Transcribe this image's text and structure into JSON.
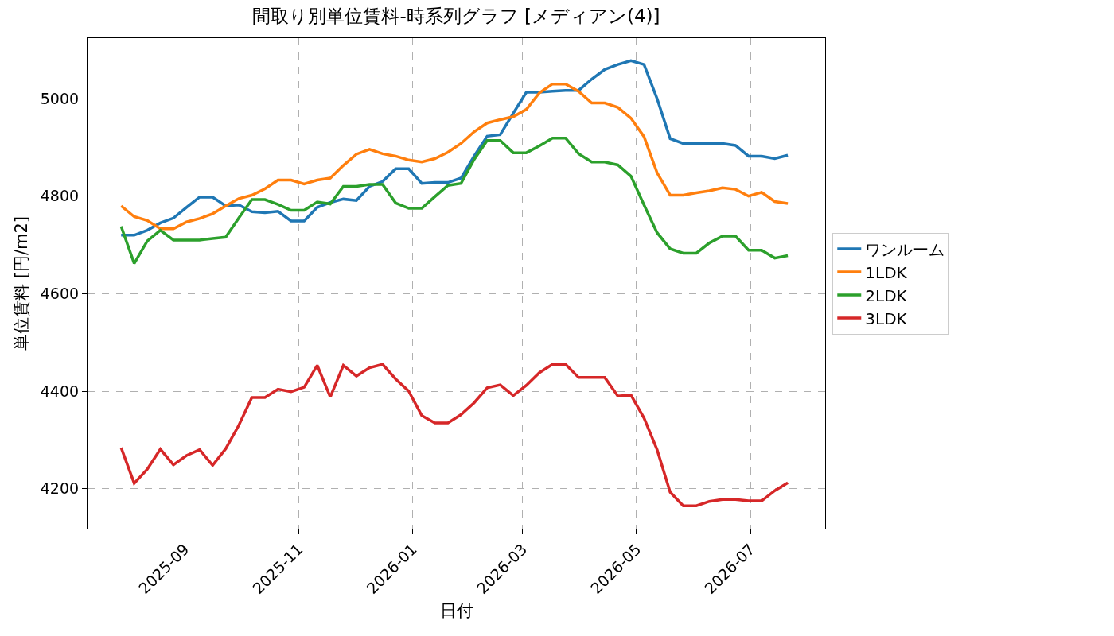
{
  "chart_data": {
    "type": "line",
    "title": "間取り別単位賃料-時系列グラフ [メディアン(4)]",
    "xlabel": "日付",
    "ylabel": "単位賃料 [円/m2]",
    "x": [
      "2025-07-29",
      "2025-08-05",
      "2025-08-12",
      "2025-08-19",
      "2025-08-26",
      "2025-09-02",
      "2025-09-09",
      "2025-09-16",
      "2025-09-23",
      "2025-09-30",
      "2025-10-07",
      "2025-10-14",
      "2025-10-21",
      "2025-10-28",
      "2025-11-04",
      "2025-11-11",
      "2025-11-18",
      "2025-11-25",
      "2025-12-02",
      "2025-12-09",
      "2025-12-16",
      "2025-12-23",
      "2025-12-30",
      "2026-01-06",
      "2026-01-13",
      "2026-01-20",
      "2026-01-27",
      "2026-02-03",
      "2026-02-10",
      "2026-02-17",
      "2026-02-24",
      "2026-03-03",
      "2026-03-10",
      "2026-03-17",
      "2026-03-24",
      "2026-03-31",
      "2026-04-07",
      "2026-04-14",
      "2026-04-21",
      "2026-04-28",
      "2026-05-05",
      "2026-05-12",
      "2026-05-19",
      "2026-05-26",
      "2026-06-02",
      "2026-06-09",
      "2026-06-16",
      "2026-06-23",
      "2026-06-30",
      "2026-07-07",
      "2026-07-14",
      "2026-07-21"
    ],
    "series": [
      {
        "name": "ワンルーム",
        "color": "#1f77b4",
        "values": [
          4720,
          4720,
          4730,
          4745,
          4755,
          4777,
          4798,
          4798,
          4780,
          4782,
          4768,
          4766,
          4769,
          4749,
          4749,
          4777,
          4787,
          4794,
          4791,
          4820,
          4830,
          4856,
          4856,
          4826,
          4828,
          4828,
          4837,
          4882,
          4923,
          4926,
          4970,
          5013,
          5013,
          5015,
          5017,
          5017,
          5040,
          5060,
          5070,
          5078,
          5070,
          5000,
          4918,
          4908,
          4908,
          4908,
          4908,
          4904,
          4882,
          4882,
          4877,
          4884
        ]
      },
      {
        "name": "1LDK",
        "color": "#ff7f0e",
        "values": [
          4780,
          4758,
          4750,
          4733,
          4733,
          4747,
          4754,
          4764,
          4780,
          4795,
          4802,
          4815,
          4833,
          4833,
          4825,
          4833,
          4837,
          4863,
          4886,
          4896,
          4887,
          4882,
          4874,
          4870,
          4877,
          4890,
          4908,
          4932,
          4950,
          4957,
          4963,
          4978,
          5012,
          5030,
          5030,
          5015,
          4991,
          4991,
          4982,
          4960,
          4922,
          4848,
          4802,
          4802,
          4807,
          4811,
          4817,
          4814,
          4800,
          4808,
          4789,
          4785
        ]
      },
      {
        "name": "2LDK",
        "color": "#2ca02c",
        "values": [
          4738,
          4662,
          4708,
          4730,
          4710,
          4710,
          4710,
          4713,
          4716,
          4755,
          4793,
          4793,
          4783,
          4771,
          4771,
          4788,
          4784,
          4820,
          4820,
          4824,
          4824,
          4786,
          4775,
          4775,
          4799,
          4822,
          4826,
          4875,
          4914,
          4914,
          4889,
          4889,
          4903,
          4919,
          4919,
          4887,
          4870,
          4870,
          4864,
          4841,
          4782,
          4725,
          4692,
          4683,
          4683,
          4704,
          4718,
          4718,
          4689,
          4689,
          4673,
          4678
        ]
      },
      {
        "name": "3LDK",
        "color": "#d62728",
        "values": [
          4284,
          4211,
          4240,
          4281,
          4249,
          4268,
          4280,
          4248,
          4282,
          4330,
          4387,
          4387,
          4404,
          4399,
          4408,
          4453,
          4388,
          4453,
          4431,
          4448,
          4455,
          4425,
          4400,
          4350,
          4335,
          4335,
          4352,
          4376,
          4407,
          4413,
          4391,
          4412,
          4438,
          4455,
          4455,
          4428,
          4428,
          4428,
          4390,
          4392,
          4345,
          4280,
          4193,
          4165,
          4165,
          4174,
          4178,
          4178,
          4175,
          4175,
          4196,
          4212
        ]
      }
    ],
    "xlim": [
      "2025-07-11",
      "2026-08-10"
    ],
    "xticks": [
      {
        "value": "2025-09-01",
        "label": "2025-09"
      },
      {
        "value": "2025-11-01",
        "label": "2025-11"
      },
      {
        "value": "2026-01-01",
        "label": "2026-01"
      },
      {
        "value": "2026-03-01",
        "label": "2026-03"
      },
      {
        "value": "2026-05-01",
        "label": "2026-05"
      },
      {
        "value": "2026-07-01",
        "label": "2026-07"
      }
    ],
    "ylim": [
      4118,
      5124
    ],
    "yticks": [
      4200,
      4400,
      4600,
      4800,
      5000
    ],
    "grid": true,
    "legend": "right",
    "marker": "none",
    "line_style": "solid"
  }
}
